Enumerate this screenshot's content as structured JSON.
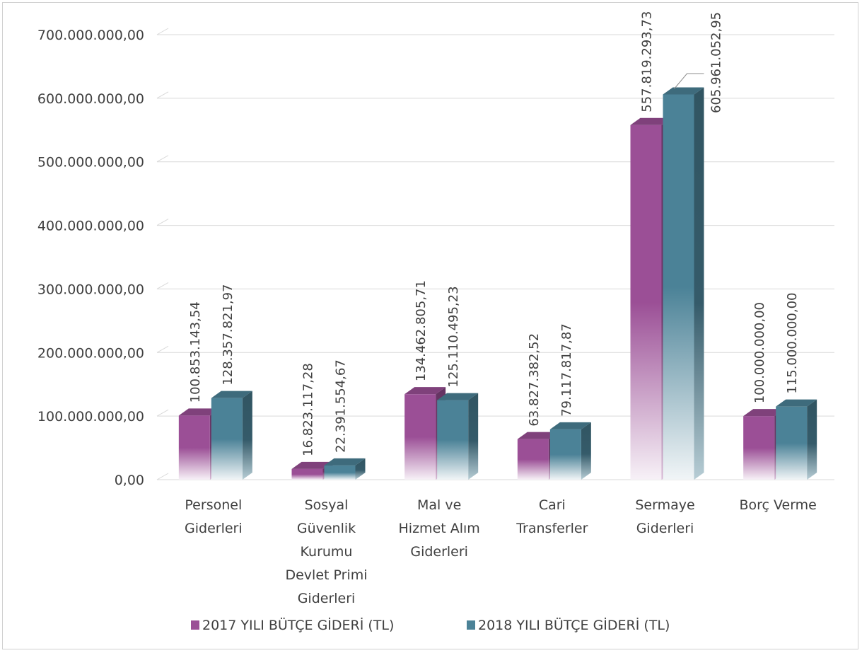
{
  "chart_data": {
    "type": "bar",
    "categories": [
      [
        "Personel",
        "Giderleri"
      ],
      [
        "Sosyal",
        "Güvenlik",
        "Kurumu",
        "Devlet Primi",
        "Giderleri"
      ],
      [
        "Mal ve",
        "Hizmet Alım",
        "Giderleri"
      ],
      [
        "Cari",
        "Transferler"
      ],
      [
        "Sermaye",
        "Giderleri"
      ],
      [
        "Borç Verme"
      ]
    ],
    "series": [
      {
        "name": "2017 YILI BÜTÇE GİDERİ (TL)",
        "values": [
          100853143.54,
          16823117.28,
          134462805.71,
          63827382.52,
          557819293.73,
          100000000.0
        ],
        "labels": [
          "100.853.143,54",
          "16.823.117,28",
          "134.462.805,71",
          "63.827.382,52",
          "557.819.293,73",
          "100.000.000,00"
        ],
        "color": "#9b4f96"
      },
      {
        "name": "2018 YILI BÜTÇE GİDERİ (TL)",
        "values": [
          128357821.97,
          22391554.67,
          125110495.23,
          79117817.87,
          605961052.95,
          115000000.0
        ],
        "labels": [
          "128.357.821,97",
          "22.391.554,67",
          "125.110.495,23",
          "79.117.817,87",
          "605.961.052,95",
          "115.000.000,00"
        ],
        "color": "#4b8297"
      }
    ],
    "ylim": [
      0,
      700000000
    ],
    "yticks": [
      0,
      100000000,
      200000000,
      300000000,
      400000000,
      500000000,
      600000000,
      700000000
    ],
    "ytick_labels": [
      "0,00",
      "100.000.000,00",
      "200.000.000,00",
      "300.000.000,00",
      "400.000.000,00",
      "500.000.000,00",
      "600.000.000,00",
      "700.000.000,00"
    ],
    "grid": true,
    "legend_position": "bottom",
    "style": "3d-column"
  }
}
